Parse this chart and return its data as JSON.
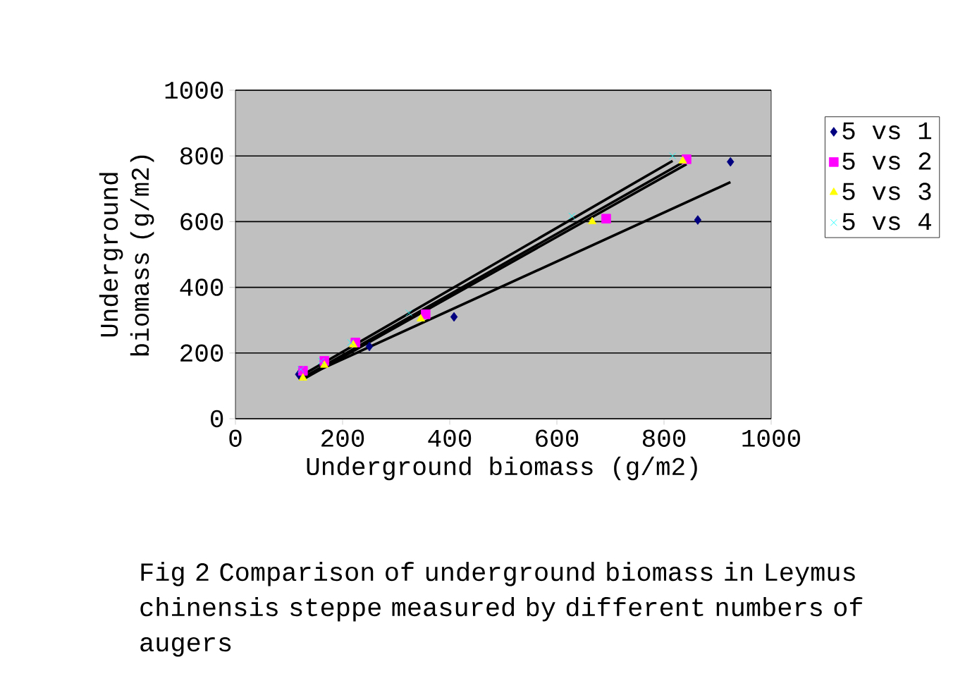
{
  "chart_data": {
    "type": "scatter",
    "xlabel": "Underground biomass (g/m2)",
    "ylabel": "Underground biomass (g/m2)",
    "xlim": [
      0,
      1000
    ],
    "ylim": [
      0,
      1000
    ],
    "xticks": [
      0,
      200,
      400,
      600,
      800,
      1000
    ],
    "yticks": [
      0,
      200,
      400,
      600,
      800,
      1000
    ],
    "grid": "y",
    "legend": "top right",
    "annotations": [
      "Fig 2 Comparison of underground biomass in Leymus chinensis steppe measured by different numbers of augers"
    ],
    "series": [
      {
        "name": "5 vs 1",
        "color": "#000080",
        "marker": "diamond",
        "x": [
          118,
          250,
          408,
          863,
          924
        ],
        "values": [
          135,
          220,
          310,
          605,
          782
        ]
      },
      {
        "name": "5 vs 2",
        "color": "#ff00ff",
        "marker": "square",
        "x": [
          126,
          166,
          224,
          355,
          692,
          842
        ],
        "values": [
          146,
          176,
          232,
          318,
          609,
          790
        ]
      },
      {
        "name": "5 vs 3",
        "color": "#ffff00",
        "marker": "triangle",
        "x": [
          126,
          166,
          220,
          346,
          666,
          835
        ],
        "values": [
          124,
          163,
          225,
          304,
          600,
          785
        ]
      },
      {
        "name": "5 vs 4",
        "color": "#00ffff",
        "marker": "cross",
        "x": [
          122,
          160,
          215,
          324,
          628,
          816
        ],
        "values": [
          150,
          175,
          232,
          322,
          617,
          800
        ]
      },
      {
        "type": "line",
        "color": "#000000",
        "marker": "none",
        "x": [
          118,
          924
        ],
        "values": [
          120,
          720
        ]
      },
      {
        "type": "line",
        "color": "#000000",
        "marker": "none",
        "x": [
          126,
          842
        ],
        "values": [
          120,
          775
        ]
      },
      {
        "type": "line",
        "color": "#000000",
        "marker": "none",
        "x": [
          126,
          835
        ],
        "values": [
          125,
          780
        ]
      },
      {
        "type": "line",
        "color": "#000000",
        "marker": "none",
        "x": [
          122,
          816
        ],
        "values": [
          130,
          785
        ]
      }
    ]
  }
}
